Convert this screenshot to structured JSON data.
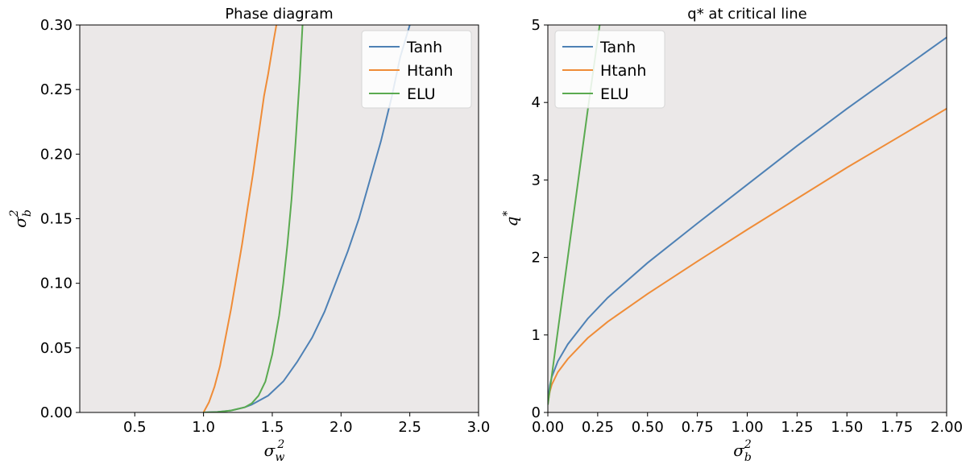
{
  "chart_data": [
    {
      "type": "line",
      "title": "Phase diagram",
      "xlabel_base": "σ",
      "xlabel_sub": "w",
      "xlabel_sup": "2",
      "ylabel_base": "σ",
      "ylabel_sub": "b",
      "ylabel_sup": "2",
      "xlim": [
        0.1,
        3.0
      ],
      "ylim": [
        0.0,
        0.3
      ],
      "xticks": [
        "0.5",
        "1.0",
        "1.5",
        "2.0",
        "2.5",
        "3.0"
      ],
      "xtick_values": [
        0.5,
        1.0,
        1.5,
        2.0,
        2.5,
        3.0
      ],
      "yticks": [
        "0.00",
        "0.05",
        "0.10",
        "0.15",
        "0.20",
        "0.25",
        "0.30"
      ],
      "ytick_values": [
        0.0,
        0.05,
        0.1,
        0.15,
        0.2,
        0.25,
        0.3
      ],
      "legend_position": "top-right",
      "series": [
        {
          "name": "Tanh",
          "color": "#4e81b5",
          "x": [
            1.0,
            1.1,
            1.2,
            1.3,
            1.35,
            1.47,
            1.58,
            1.68,
            1.79,
            1.88,
            1.96,
            2.05,
            2.13,
            2.21,
            2.29,
            2.37,
            2.43,
            2.5
          ],
          "y": [
            0.0,
            0.0004,
            0.0015,
            0.004,
            0.006,
            0.013,
            0.024,
            0.039,
            0.058,
            0.078,
            0.1,
            0.125,
            0.15,
            0.18,
            0.21,
            0.245,
            0.275,
            0.3
          ]
        },
        {
          "name": "Htanh",
          "color": "#ef8c37",
          "x": [
            1.0,
            1.04,
            1.08,
            1.12,
            1.16,
            1.2,
            1.24,
            1.28,
            1.32,
            1.36,
            1.4,
            1.44,
            1.47,
            1.51,
            1.53
          ],
          "y": [
            0.0,
            0.008,
            0.02,
            0.036,
            0.058,
            0.08,
            0.105,
            0.13,
            0.158,
            0.185,
            0.215,
            0.245,
            0.262,
            0.288,
            0.3
          ]
        },
        {
          "name": "ELU",
          "color": "#5aaa50",
          "x": [
            1.0,
            1.1,
            1.2,
            1.3,
            1.35,
            1.4,
            1.45,
            1.5,
            1.55,
            1.58,
            1.61,
            1.64,
            1.67,
            1.7,
            1.72
          ],
          "y": [
            0.0,
            0.0003,
            0.0015,
            0.004,
            0.007,
            0.013,
            0.024,
            0.045,
            0.075,
            0.1,
            0.13,
            0.165,
            0.21,
            0.26,
            0.3
          ]
        }
      ]
    },
    {
      "type": "line",
      "title": "q* at critical line",
      "xlabel_base": "σ",
      "xlabel_sub": "b",
      "xlabel_sup": "2",
      "ylabel_base": "q",
      "ylabel_sub": "",
      "ylabel_sup": "*",
      "xlim": [
        0.0,
        2.0
      ],
      "ylim": [
        0,
        5
      ],
      "xticks": [
        "0.00",
        "0.25",
        "0.50",
        "0.75",
        "1.00",
        "1.25",
        "1.50",
        "1.75",
        "2.00"
      ],
      "xtick_values": [
        0.0,
        0.25,
        0.5,
        0.75,
        1.0,
        1.25,
        1.5,
        1.75,
        2.0
      ],
      "yticks": [
        "0",
        "1",
        "2",
        "3",
        "4",
        "5"
      ],
      "ytick_values": [
        0,
        1,
        2,
        3,
        4,
        5
      ],
      "legend_position": "top-left",
      "series": [
        {
          "name": "Tanh",
          "color": "#4e81b5",
          "x": [
            0.0,
            0.01,
            0.02,
            0.05,
            0.1,
            0.2,
            0.3,
            0.5,
            0.75,
            1.0,
            1.25,
            1.5,
            1.75,
            2.0
          ],
          "y": [
            0.15,
            0.35,
            0.46,
            0.66,
            0.88,
            1.21,
            1.48,
            1.93,
            2.44,
            2.94,
            3.44,
            3.92,
            4.38,
            4.84
          ]
        },
        {
          "name": "Htanh",
          "color": "#ef8c37",
          "x": [
            0.0,
            0.01,
            0.02,
            0.05,
            0.1,
            0.2,
            0.3,
            0.5,
            0.75,
            1.0,
            1.25,
            1.5,
            1.75,
            2.0
          ],
          "y": [
            0.12,
            0.27,
            0.36,
            0.52,
            0.69,
            0.96,
            1.17,
            1.53,
            1.95,
            2.36,
            2.76,
            3.16,
            3.54,
            3.92
          ]
        },
        {
          "name": "ELU",
          "color": "#5aaa50",
          "x": [
            0.0,
            0.05,
            0.1,
            0.15,
            0.2,
            0.26
          ],
          "y": [
            0.1,
            1.05,
            2.0,
            2.95,
            3.9,
            5.0
          ]
        }
      ]
    }
  ]
}
